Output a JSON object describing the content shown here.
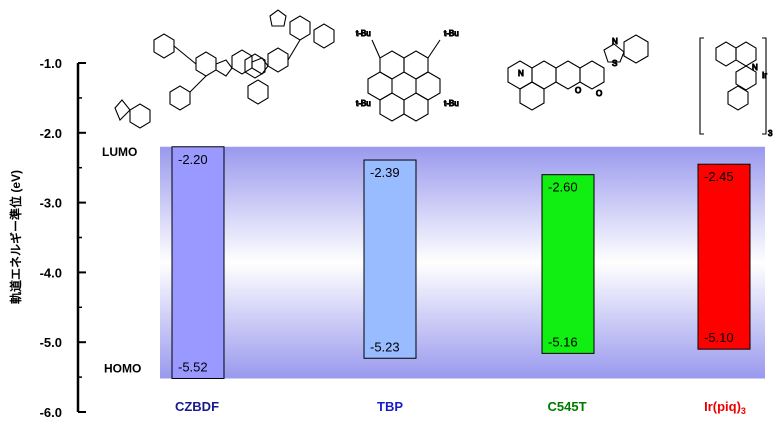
{
  "chart_data": {
    "type": "bar",
    "ylabel": "軌道エネルギー準位 (eV)",
    "ylim": [
      -6.0,
      -1.0
    ],
    "yticks": [
      "-1.0",
      "-2.0",
      "-3.0",
      "-4.0",
      "-5.0",
      "-6.0"
    ],
    "ytick_values": [
      -1.0,
      -2.0,
      -3.0,
      -4.0,
      -5.0,
      -6.0
    ],
    "band_labels": {
      "lumo": "LUMO",
      "homo": "HOMO"
    },
    "categories": [
      "CZBDF",
      "TBP",
      "C545T",
      "Ir(piq)3"
    ],
    "category_display": [
      {
        "main": "CZBDF",
        "sub": ""
      },
      {
        "main": "TBP",
        "sub": ""
      },
      {
        "main": "C545T",
        "sub": ""
      },
      {
        "main": "Ir(piq)",
        "sub": "3"
      }
    ],
    "category_colors": [
      "#1a1a8c",
      "#1a1acc",
      "#007a00",
      "#ee0000"
    ],
    "bar_colors": [
      "#9999ff",
      "#99bbff",
      "#11ee11",
      "#ff0000"
    ],
    "lumo": [
      -2.2,
      -2.39,
      -2.6,
      -2.45
    ],
    "homo": [
      -5.52,
      -5.23,
      -5.16,
      -5.1
    ],
    "lumo_labels": [
      "-2.20",
      "-2.39",
      "-2.60",
      "-2.45"
    ],
    "homo_labels": [
      "-5.52",
      "-5.23",
      "-5.16",
      "-5.10"
    ],
    "background_band": {
      "top": -2.2,
      "bottom": -5.52
    },
    "grid": false
  },
  "structures": {
    "tbp_substituent": "t-Bu",
    "ir_atom": "Ir",
    "n_atom": "N",
    "o_atom": "O",
    "s_atom": "S",
    "ir_subscript": "3"
  }
}
